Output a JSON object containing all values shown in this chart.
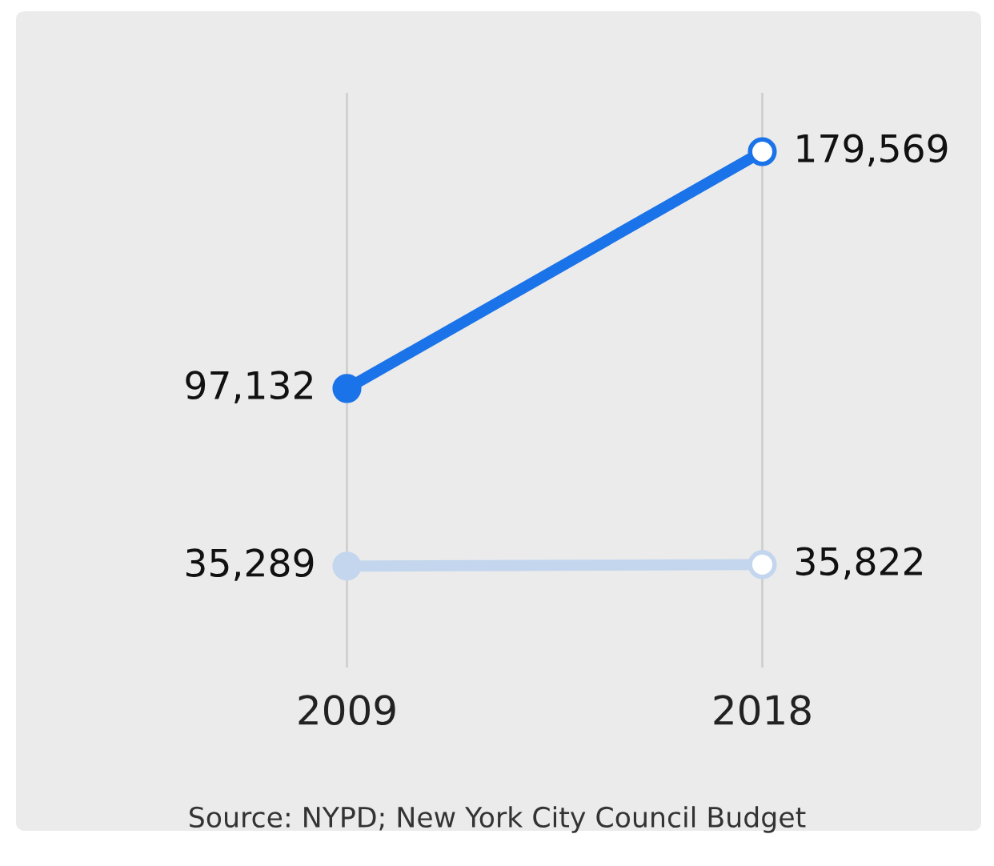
{
  "chart_data": {
    "type": "line",
    "categories": [
      "2009",
      "2018"
    ],
    "series": [
      {
        "color": "#1a73e8",
        "values": [
          97132,
          179569
        ],
        "value_labels": [
          "97,132",
          "179,569"
        ]
      },
      {
        "color": "#c3d6ee",
        "values": [
          35289,
          35822
        ],
        "value_labels": [
          "35,289",
          "35,822"
        ]
      }
    ],
    "tick_labels": "x",
    "grid": "x",
    "marker": "circle",
    "line_style": "solid",
    "annotations": [
      "Source: NYPD; New York City Council Budget"
    ]
  }
}
